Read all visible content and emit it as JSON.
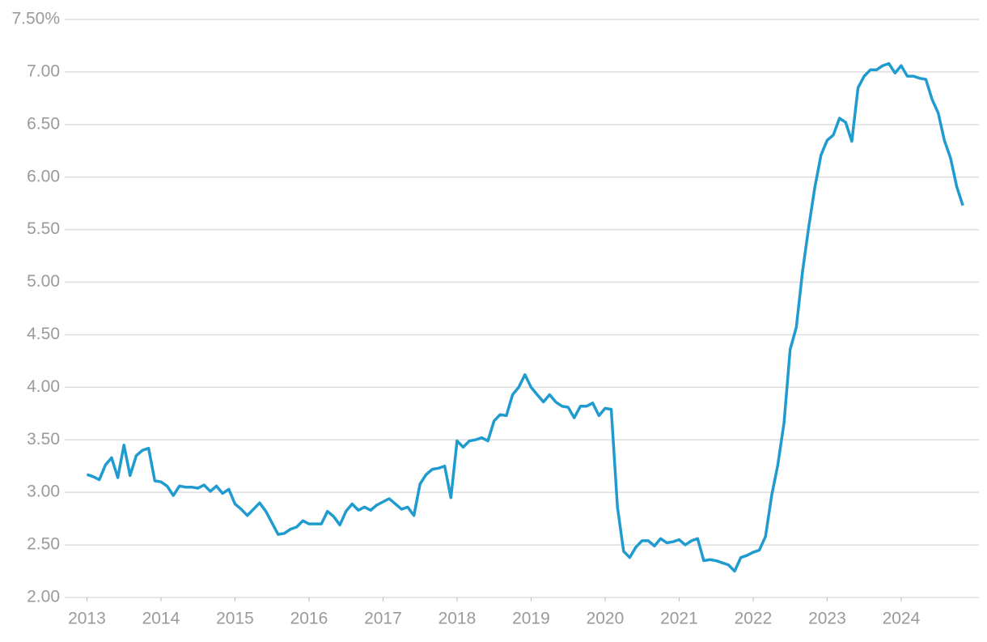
{
  "chart_data": {
    "type": "line",
    "x": [
      2013,
      2013.083,
      2013.167,
      2013.25,
      2013.333,
      2013.417,
      2013.5,
      2013.583,
      2013.667,
      2013.75,
      2013.833,
      2013.917,
      2014,
      2014.083,
      2014.167,
      2014.25,
      2014.333,
      2014.417,
      2014.5,
      2014.583,
      2014.667,
      2014.75,
      2014.833,
      2014.917,
      2015,
      2015.083,
      2015.167,
      2015.25,
      2015.333,
      2015.417,
      2015.5,
      2015.583,
      2015.667,
      2015.75,
      2015.833,
      2015.917,
      2016,
      2016.083,
      2016.167,
      2016.25,
      2016.333,
      2016.417,
      2016.5,
      2016.583,
      2016.667,
      2016.75,
      2016.833,
      2016.917,
      2017,
      2017.083,
      2017.167,
      2017.25,
      2017.333,
      2017.417,
      2017.5,
      2017.583,
      2017.667,
      2017.75,
      2017.833,
      2017.917,
      2018,
      2018.083,
      2018.167,
      2018.25,
      2018.333,
      2018.417,
      2018.5,
      2018.583,
      2018.667,
      2018.75,
      2018.833,
      2018.917,
      2019,
      2019.083,
      2019.167,
      2019.25,
      2019.333,
      2019.417,
      2019.5,
      2019.583,
      2019.667,
      2019.75,
      2019.833,
      2019.917,
      2020,
      2020.083,
      2020.167,
      2020.25,
      2020.333,
      2020.417,
      2020.5,
      2020.583,
      2020.667,
      2020.75,
      2020.833,
      2020.917,
      2021,
      2021.083,
      2021.167,
      2021.25,
      2021.333,
      2021.417,
      2021.5,
      2021.583,
      2021.667,
      2021.75,
      2021.833,
      2021.917,
      2022,
      2022.083,
      2022.167,
      2022.25,
      2022.333,
      2022.417,
      2022.5,
      2022.583,
      2022.667,
      2022.75,
      2022.833,
      2022.917,
      2023,
      2023.083,
      2023.167,
      2023.25,
      2023.333,
      2023.417,
      2023.5,
      2023.583,
      2023.667,
      2023.75,
      2023.833,
      2023.917,
      2024,
      2024.083,
      2024.167,
      2024.25,
      2024.333,
      2024.417,
      2024.5,
      2024.583,
      2024.667,
      2024.75,
      2024.833
    ],
    "series": [
      {
        "color": "#1f9bcf",
        "values": [
          3.17,
          3.15,
          3.12,
          3.26,
          3.33,
          3.14,
          3.45,
          3.16,
          3.35,
          3.4,
          3.42,
          3.11,
          3.1,
          3.06,
          2.97,
          3.06,
          3.05,
          3.05,
          3.04,
          3.07,
          3.01,
          3.06,
          2.99,
          3.03,
          2.89,
          2.84,
          2.78,
          2.84,
          2.9,
          2.82,
          2.71,
          2.6,
          2.61,
          2.65,
          2.67,
          2.73,
          2.7,
          2.7,
          2.7,
          2.82,
          2.77,
          2.69,
          2.82,
          2.89,
          2.83,
          2.86,
          2.83,
          2.88,
          2.91,
          2.94,
          2.89,
          2.84,
          2.86,
          2.78,
          3.08,
          3.17,
          3.22,
          3.23,
          3.25,
          2.95,
          3.49,
          3.43,
          3.49,
          3.5,
          3.52,
          3.49,
          3.68,
          3.74,
          3.73,
          3.93,
          4.0,
          4.12,
          4.0,
          3.93,
          3.86,
          3.93,
          3.86,
          3.82,
          3.81,
          3.71,
          3.82,
          3.82,
          3.85,
          3.73,
          3.8,
          3.79,
          2.86,
          2.44,
          2.38,
          2.48,
          2.54,
          2.54,
          2.49,
          2.56,
          2.52,
          2.53,
          2.55,
          2.5,
          2.54,
          2.56,
          2.35,
          2.36,
          2.35,
          2.33,
          2.31,
          2.25,
          2.38,
          2.4,
          2.43,
          2.45,
          2.58,
          2.97,
          3.26,
          3.66,
          4.36,
          4.57,
          5.1,
          5.52,
          5.9,
          6.21,
          6.35,
          6.4,
          6.56,
          6.52,
          6.34,
          6.85,
          6.96,
          7.02,
          7.02,
          7.06,
          7.08,
          6.99,
          7.06,
          6.96,
          6.96,
          6.94,
          6.93,
          6.74,
          6.61,
          6.35,
          6.18,
          5.91,
          5.73
        ]
      }
    ],
    "xlim": [
      2012.7,
      2025.05
    ],
    "xticks": [
      2013,
      2014,
      2015,
      2016,
      2017,
      2018,
      2019,
      2020,
      2021,
      2022,
      2023,
      2024
    ],
    "ylim": [
      2,
      7.5
    ],
    "yticks": [
      {
        "value": 2,
        "label": "2.00"
      },
      {
        "value": 2.5,
        "label": "2.50"
      },
      {
        "value": 3,
        "label": "3.00"
      },
      {
        "value": 3.5,
        "label": "3.50"
      },
      {
        "value": 4,
        "label": "4.00"
      },
      {
        "value": 4.5,
        "label": "4.50"
      },
      {
        "value": 5,
        "label": "5.00"
      },
      {
        "value": 5.5,
        "label": "5.50"
      },
      {
        "value": 6,
        "label": "6.00"
      },
      {
        "value": 6.5,
        "label": "6.50"
      },
      {
        "value": 7,
        "label": "7.00"
      },
      {
        "value": 7.5,
        "label": "7.50%"
      }
    ],
    "grid": true
  }
}
